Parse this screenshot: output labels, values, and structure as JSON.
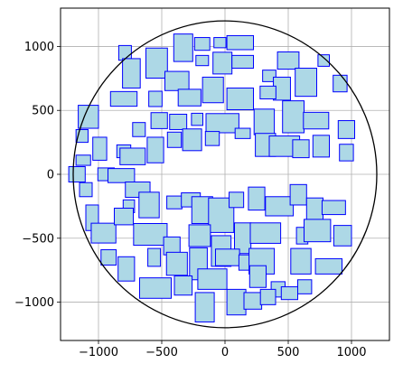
{
  "chart_data": {
    "type": "scatter",
    "title": "",
    "xlabel": "",
    "ylabel": "",
    "xlim": [
      -1300,
      1300
    ],
    "ylim": [
      -1300,
      1300
    ],
    "aspect": "equal",
    "grid": true,
    "x_ticks": [
      -1000,
      -500,
      0,
      500,
      1000
    ],
    "y_ticks": [
      -1000,
      -500,
      0,
      500,
      1000
    ],
    "x_tick_labels": [
      "−1000",
      "−500",
      "0",
      "500",
      "1000"
    ],
    "y_tick_labels": [
      "−1000",
      "−500",
      "0",
      "500",
      "1000"
    ],
    "circle": {
      "center": [
        0,
        0
      ],
      "radius": 1200,
      "edge_color": "#000000"
    },
    "rect_style": {
      "fill": "#add8e6",
      "edge": "#0000ff"
    },
    "rectangles": [
      [
        -790,
        950,
        100,
        115
      ],
      [
        -740,
        790,
        140,
        230
      ],
      [
        -540,
        870,
        170,
        235
      ],
      [
        -330,
        990,
        150,
        215
      ],
      [
        -180,
        1020,
        120,
        100
      ],
      [
        -40,
        1030,
        95,
        80
      ],
      [
        120,
        1030,
        210,
        110
      ],
      [
        -180,
        890,
        100,
        80
      ],
      [
        -20,
        870,
        150,
        170
      ],
      [
        140,
        880,
        170,
        100
      ],
      [
        500,
        890,
        170,
        135
      ],
      [
        350,
        770,
        105,
        90
      ],
      [
        450,
        670,
        135,
        180
      ],
      [
        780,
        890,
        90,
        90
      ],
      [
        640,
        720,
        170,
        220
      ],
      [
        910,
        710,
        110,
        130
      ],
      [
        -1080,
        450,
        160,
        180
      ],
      [
        -800,
        590,
        210,
        115
      ],
      [
        -550,
        590,
        105,
        120
      ],
      [
        -380,
        730,
        190,
        150
      ],
      [
        -280,
        600,
        180,
        130
      ],
      [
        -95,
        660,
        165,
        200
      ],
      [
        120,
        590,
        210,
        170
      ],
      [
        340,
        640,
        125,
        100
      ],
      [
        -1130,
        300,
        95,
        100
      ],
      [
        -680,
        350,
        100,
        110
      ],
      [
        -520,
        420,
        130,
        125
      ],
      [
        -370,
        410,
        135,
        120
      ],
      [
        -220,
        430,
        90,
        95
      ],
      [
        -20,
        400,
        260,
        150
      ],
      [
        310,
        410,
        160,
        200
      ],
      [
        540,
        450,
        170,
        250
      ],
      [
        720,
        420,
        200,
        130
      ],
      [
        960,
        350,
        130,
        140
      ],
      [
        -1120,
        110,
        115,
        80
      ],
      [
        -990,
        200,
        110,
        180
      ],
      [
        -800,
        180,
        110,
        100
      ],
      [
        -730,
        140,
        200,
        130
      ],
      [
        -550,
        190,
        130,
        200
      ],
      [
        -400,
        270,
        110,
        120
      ],
      [
        -260,
        270,
        150,
        170
      ],
      [
        -100,
        280,
        110,
        110
      ],
      [
        140,
        320,
        120,
        80
      ],
      [
        320,
        230,
        160,
        180
      ],
      [
        470,
        220,
        240,
        160
      ],
      [
        600,
        200,
        130,
        140
      ],
      [
        760,
        220,
        130,
        170
      ],
      [
        960,
        170,
        110,
        130
      ],
      [
        -1170,
        0,
        130,
        120
      ],
      [
        -1100,
        -120,
        100,
        110
      ],
      [
        -940,
        0,
        130,
        100
      ],
      [
        -820,
        -10,
        210,
        110
      ],
      [
        -690,
        -120,
        195,
        120
      ],
      [
        -760,
        -250,
        90,
        100
      ],
      [
        -600,
        -240,
        160,
        200
      ],
      [
        -400,
        -220,
        120,
        100
      ],
      [
        -270,
        -200,
        150,
        110
      ],
      [
        -180,
        -280,
        165,
        210
      ],
      [
        -30,
        -320,
        200,
        270
      ],
      [
        90,
        -200,
        115,
        120
      ],
      [
        250,
        -190,
        130,
        180
      ],
      [
        430,
        -250,
        220,
        150
      ],
      [
        580,
        -160,
        130,
        160
      ],
      [
        710,
        -270,
        130,
        170
      ],
      [
        860,
        -260,
        185,
        110
      ],
      [
        -1050,
        -340,
        100,
        200
      ],
      [
        -960,
        -460,
        195,
        155
      ],
      [
        -800,
        -330,
        150,
        130
      ],
      [
        -590,
        -470,
        265,
        170
      ],
      [
        -420,
        -560,
        130,
        140
      ],
      [
        -200,
        -480,
        170,
        170
      ],
      [
        -30,
        -600,
        155,
        240
      ],
      [
        140,
        -500,
        130,
        240
      ],
      [
        320,
        -460,
        240,
        160
      ],
      [
        610,
        -480,
        90,
        130
      ],
      [
        730,
        -440,
        210,
        175
      ],
      [
        930,
        -480,
        140,
        160
      ],
      [
        -920,
        -650,
        120,
        120
      ],
      [
        -780,
        -740,
        130,
        190
      ],
      [
        -560,
        -650,
        100,
        140
      ],
      [
        -380,
        -700,
        165,
        180
      ],
      [
        -210,
        -700,
        140,
        250
      ],
      [
        20,
        -650,
        190,
        130
      ],
      [
        160,
        -690,
        100,
        120
      ],
      [
        290,
        -680,
        200,
        200
      ],
      [
        600,
        -680,
        160,
        200
      ],
      [
        820,
        -720,
        210,
        120
      ],
      [
        -100,
        -820,
        230,
        160
      ],
      [
        260,
        -800,
        130,
        170
      ],
      [
        420,
        -900,
        110,
        120
      ],
      [
        510,
        -930,
        130,
        100
      ],
      [
        630,
        -880,
        110,
        110
      ],
      [
        -550,
        -890,
        250,
        160
      ],
      [
        -330,
        -870,
        140,
        150
      ],
      [
        -160,
        -1040,
        150,
        230
      ],
      [
        90,
        -1000,
        150,
        200
      ],
      [
        220,
        -990,
        140,
        130
      ],
      [
        340,
        -960,
        120,
        120
      ]
    ]
  }
}
